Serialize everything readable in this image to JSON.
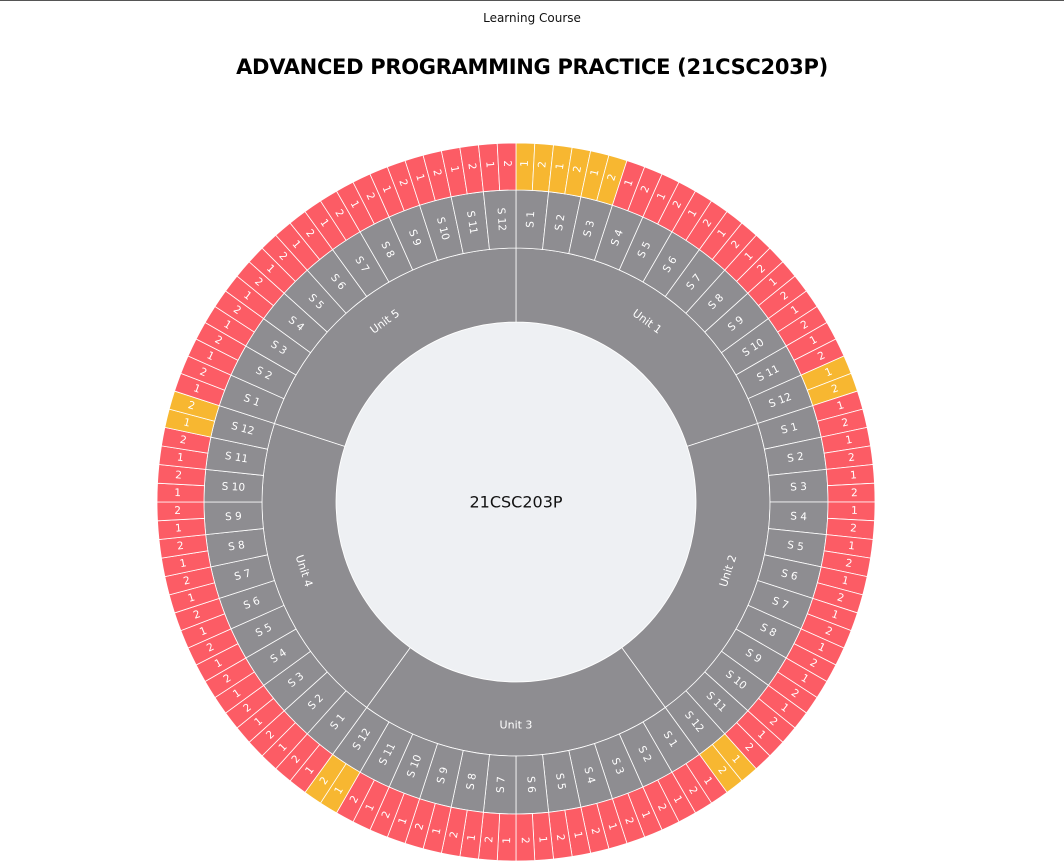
{
  "header": {
    "label": "Learning Course"
  },
  "title": "ADVANCED PROGRAMMING PRACTICE (21CSC203P)",
  "chart_data": {
    "type": "sunburst",
    "center_label": "21CSC203P",
    "colors": {
      "center": "#eef0f3",
      "unit": "#8e8d91",
      "session": "#8e8d91",
      "segment_default": "#fc5c65",
      "segment_highlight": "#f7b731",
      "separator": "#ffffff"
    },
    "units": [
      {
        "name": "Unit 1",
        "sessions": [
          "S 1",
          "S 2",
          "S 3",
          "S 4",
          "S 5",
          "S 6",
          "S 7",
          "S 8",
          "S 9",
          "S 10",
          "S 11",
          "S 12"
        ]
      },
      {
        "name": "Unit 2",
        "sessions": [
          "S 1",
          "S 2",
          "S 3",
          "S 4",
          "S 5",
          "S 6",
          "S 7",
          "S 8",
          "S 9",
          "S 10",
          "S 11",
          "S 12"
        ]
      },
      {
        "name": "Unit 3",
        "sessions": [
          "S 1",
          "S 2",
          "S 3",
          "S 4",
          "S 5",
          "S 6",
          "S 7",
          "S 8",
          "S 9",
          "S 10",
          "S 11",
          "S 12"
        ]
      },
      {
        "name": "Unit 4",
        "sessions": [
          "S 1",
          "S 2",
          "S 3",
          "S 4",
          "S 5",
          "S 6",
          "S 7",
          "S 8",
          "S 9",
          "S 10",
          "S 11",
          "S 12"
        ]
      },
      {
        "name": "Unit 5",
        "sessions": [
          "S 1",
          "S 2",
          "S 3",
          "S 4",
          "S 5",
          "S 6",
          "S 7",
          "S 8",
          "S 9",
          "S 10",
          "S 11",
          "S 12"
        ]
      }
    ],
    "segment_labels": [
      "1",
      "2"
    ],
    "highlighted_sessions": [
      {
        "unit": "Unit 1",
        "sessions": [
          "S 1",
          "S 2",
          "S 3",
          "S 12"
        ]
      },
      {
        "unit": "Unit 2",
        "sessions": [
          "S 12"
        ]
      },
      {
        "unit": "Unit 3",
        "sessions": [
          "S 12"
        ]
      },
      {
        "unit": "Unit 4",
        "sessions": [
          "S 12"
        ]
      }
    ]
  }
}
